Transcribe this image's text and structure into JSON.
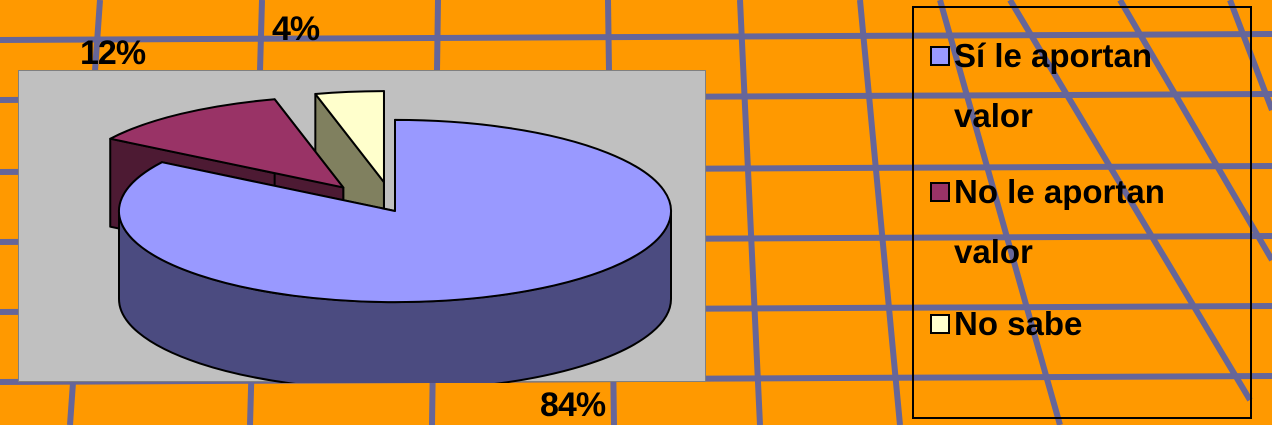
{
  "chart_data": {
    "type": "pie",
    "title": "",
    "series": [
      {
        "values": [
          84,
          12,
          4
        ]
      }
    ],
    "categories": [
      "Sí le aportan valor",
      "No le aportan valor",
      "No sabe"
    ],
    "data_labels": [
      "84%",
      "12%",
      "4%"
    ],
    "colors": [
      "#9999ff",
      "#993366",
      "#ffffcc"
    ],
    "side_colors": [
      "#4b4b80",
      "#4d1a33",
      "#80805f"
    ],
    "three_d": true,
    "exploded": true,
    "legend_position": "right",
    "plot_background": "#c0c0c0",
    "page_background": "#ff9900",
    "grid_line_color": "#666699"
  }
}
